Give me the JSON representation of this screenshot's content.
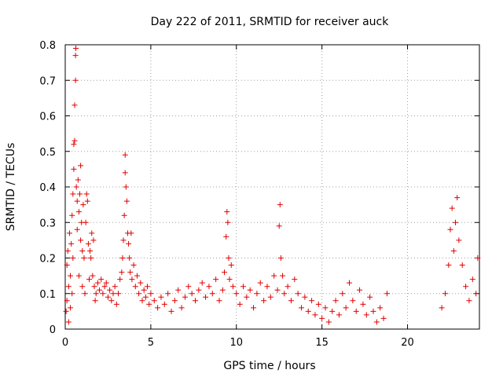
{
  "chart_data": {
    "type": "scatter",
    "title": "Day 222 of 2011, SRMTID for receiver auck",
    "xlabel": "GPS time / hours",
    "ylabel": "SRMTID / TECUs",
    "xlim": [
      0,
      24.2
    ],
    "ylim": [
      0,
      0.8
    ],
    "xticks": [
      "0",
      "5",
      "10",
      "15",
      "20"
    ],
    "xtick_values": [
      0,
      5,
      10,
      15,
      20
    ],
    "yticks": [
      "0",
      "0.1",
      "0.2",
      "0.3",
      "0.4",
      "0.5",
      "0.6",
      "0.7",
      "0.8"
    ],
    "ytick_values": [
      0,
      0.1,
      0.2,
      0.3,
      0.4,
      0.5,
      0.6,
      0.7,
      0.8
    ],
    "grid": true,
    "marker": "plus",
    "color": "#e00000",
    "series": [
      {
        "points": [
          [
            0.05,
            0.05
          ],
          [
            0.1,
            0.08
          ],
          [
            0.1,
            0.18
          ],
          [
            0.15,
            0.22
          ],
          [
            0.2,
            0.12
          ],
          [
            0.2,
            0.02
          ],
          [
            0.25,
            0.27
          ],
          [
            0.3,
            0.15
          ],
          [
            0.3,
            0.06
          ],
          [
            0.35,
            0.24
          ],
          [
            0.4,
            0.32
          ],
          [
            0.4,
            0.1
          ],
          [
            0.45,
            0.2
          ],
          [
            0.45,
            0.38
          ],
          [
            0.5,
            0.45
          ],
          [
            0.5,
            0.52
          ],
          [
            0.55,
            0.53
          ],
          [
            0.55,
            0.63
          ],
          [
            0.6,
            0.7
          ],
          [
            0.6,
            0.77
          ],
          [
            0.62,
            0.79
          ],
          [
            0.65,
            0.4
          ],
          [
            0.7,
            0.36
          ],
          [
            0.7,
            0.28
          ],
          [
            0.75,
            0.42
          ],
          [
            0.8,
            0.33
          ],
          [
            0.8,
            0.15
          ],
          [
            0.85,
            0.38
          ],
          [
            0.9,
            0.46
          ],
          [
            0.9,
            0.25
          ],
          [
            0.95,
            0.3
          ],
          [
            1.0,
            0.22
          ],
          [
            1.0,
            0.12
          ],
          [
            1.05,
            0.35
          ],
          [
            1.1,
            0.2
          ],
          [
            1.15,
            0.1
          ],
          [
            1.2,
            0.3
          ],
          [
            1.25,
            0.38
          ],
          [
            1.3,
            0.36
          ],
          [
            1.35,
            0.24
          ],
          [
            1.4,
            0.14
          ],
          [
            1.45,
            0.22
          ],
          [
            1.5,
            0.2
          ],
          [
            1.55,
            0.27
          ],
          [
            1.6,
            0.15
          ],
          [
            1.65,
            0.25
          ],
          [
            1.7,
            0.12
          ],
          [
            1.75,
            0.08
          ],
          [
            1.8,
            0.1
          ],
          [
            1.9,
            0.13
          ],
          [
            2.0,
            0.11
          ],
          [
            2.1,
            0.14
          ],
          [
            2.2,
            0.1
          ],
          [
            2.3,
            0.12
          ],
          [
            2.4,
            0.13
          ],
          [
            2.5,
            0.09
          ],
          [
            2.6,
            0.11
          ],
          [
            2.7,
            0.08
          ],
          [
            2.8,
            0.1
          ],
          [
            2.9,
            0.12
          ],
          [
            3.0,
            0.07
          ],
          [
            3.1,
            0.1
          ],
          [
            3.2,
            0.14
          ],
          [
            3.3,
            0.16
          ],
          [
            3.35,
            0.2
          ],
          [
            3.4,
            0.25
          ],
          [
            3.45,
            0.32
          ],
          [
            3.5,
            0.44
          ],
          [
            3.5,
            0.49
          ],
          [
            3.55,
            0.4
          ],
          [
            3.6,
            0.36
          ],
          [
            3.65,
            0.27
          ],
          [
            3.7,
            0.24
          ],
          [
            3.75,
            0.2
          ],
          [
            3.8,
            0.16
          ],
          [
            3.85,
            0.27
          ],
          [
            3.9,
            0.14
          ],
          [
            4.0,
            0.18
          ],
          [
            4.1,
            0.12
          ],
          [
            4.2,
            0.15
          ],
          [
            4.3,
            0.1
          ],
          [
            4.4,
            0.13
          ],
          [
            4.5,
            0.08
          ],
          [
            4.6,
            0.11
          ],
          [
            4.7,
            0.09
          ],
          [
            4.8,
            0.12
          ],
          [
            4.9,
            0.07
          ],
          [
            5.0,
            0.1
          ],
          [
            5.2,
            0.08
          ],
          [
            5.4,
            0.06
          ],
          [
            5.6,
            0.09
          ],
          [
            5.8,
            0.07
          ],
          [
            6.0,
            0.1
          ],
          [
            6.2,
            0.05
          ],
          [
            6.4,
            0.08
          ],
          [
            6.6,
            0.11
          ],
          [
            6.8,
            0.06
          ],
          [
            7.0,
            0.09
          ],
          [
            7.2,
            0.12
          ],
          [
            7.4,
            0.1
          ],
          [
            7.6,
            0.08
          ],
          [
            7.8,
            0.11
          ],
          [
            8.0,
            0.13
          ],
          [
            8.2,
            0.09
          ],
          [
            8.4,
            0.12
          ],
          [
            8.6,
            0.1
          ],
          [
            8.8,
            0.14
          ],
          [
            9.0,
            0.08
          ],
          [
            9.2,
            0.11
          ],
          [
            9.3,
            0.16
          ],
          [
            9.4,
            0.26
          ],
          [
            9.45,
            0.33
          ],
          [
            9.5,
            0.3
          ],
          [
            9.55,
            0.2
          ],
          [
            9.6,
            0.14
          ],
          [
            9.7,
            0.18
          ],
          [
            9.8,
            0.12
          ],
          [
            10.0,
            0.1
          ],
          [
            10.2,
            0.07
          ],
          [
            10.4,
            0.12
          ],
          [
            10.6,
            0.09
          ],
          [
            10.8,
            0.11
          ],
          [
            11.0,
            0.06
          ],
          [
            11.2,
            0.1
          ],
          [
            11.4,
            0.13
          ],
          [
            11.6,
            0.08
          ],
          [
            11.8,
            0.12
          ],
          [
            12.0,
            0.09
          ],
          [
            12.2,
            0.15
          ],
          [
            12.4,
            0.11
          ],
          [
            12.5,
            0.29
          ],
          [
            12.55,
            0.35
          ],
          [
            12.6,
            0.2
          ],
          [
            12.7,
            0.15
          ],
          [
            12.8,
            0.1
          ],
          [
            13.0,
            0.12
          ],
          [
            13.2,
            0.08
          ],
          [
            13.4,
            0.14
          ],
          [
            13.6,
            0.1
          ],
          [
            13.8,
            0.06
          ],
          [
            14.0,
            0.09
          ],
          [
            14.2,
            0.05
          ],
          [
            14.4,
            0.08
          ],
          [
            14.6,
            0.04
          ],
          [
            14.8,
            0.07
          ],
          [
            15.0,
            0.03
          ],
          [
            15.2,
            0.06
          ],
          [
            15.4,
            0.02
          ],
          [
            15.6,
            0.05
          ],
          [
            15.8,
            0.08
          ],
          [
            16.0,
            0.04
          ],
          [
            16.2,
            0.1
          ],
          [
            16.4,
            0.06
          ],
          [
            16.6,
            0.13
          ],
          [
            16.8,
            0.08
          ],
          [
            17.0,
            0.05
          ],
          [
            17.2,
            0.11
          ],
          [
            17.4,
            0.07
          ],
          [
            17.6,
            0.04
          ],
          [
            17.8,
            0.09
          ],
          [
            18.0,
            0.05
          ],
          [
            18.2,
            0.02
          ],
          [
            18.4,
            0.06
          ],
          [
            18.6,
            0.03
          ],
          [
            18.8,
            0.1
          ],
          [
            22.0,
            0.06
          ],
          [
            22.2,
            0.1
          ],
          [
            22.4,
            0.18
          ],
          [
            22.5,
            0.28
          ],
          [
            22.6,
            0.34
          ],
          [
            22.7,
            0.22
          ],
          [
            22.8,
            0.3
          ],
          [
            22.9,
            0.37
          ],
          [
            23.0,
            0.25
          ],
          [
            23.2,
            0.18
          ],
          [
            23.4,
            0.12
          ],
          [
            23.6,
            0.08
          ],
          [
            23.8,
            0.14
          ],
          [
            24.0,
            0.1
          ],
          [
            24.1,
            0.2
          ]
        ]
      }
    ]
  }
}
